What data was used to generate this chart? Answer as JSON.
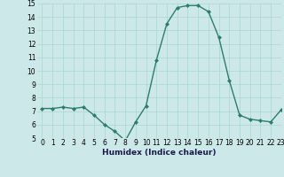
{
  "x": [
    0,
    1,
    2,
    3,
    4,
    5,
    6,
    7,
    8,
    9,
    10,
    11,
    12,
    13,
    14,
    15,
    16,
    17,
    18,
    19,
    20,
    21,
    22,
    23
  ],
  "y": [
    7.2,
    7.2,
    7.3,
    7.2,
    7.3,
    6.7,
    6.0,
    5.5,
    4.8,
    6.2,
    7.4,
    10.8,
    13.5,
    14.7,
    14.85,
    14.85,
    14.4,
    12.5,
    9.3,
    6.7,
    6.4,
    6.3,
    6.2,
    7.1
  ],
  "xlabel": "Humidex (Indice chaleur)",
  "ylim": [
    5,
    15
  ],
  "xlim": [
    -0.5,
    23
  ],
  "yticks": [
    5,
    6,
    7,
    8,
    9,
    10,
    11,
    12,
    13,
    14,
    15
  ],
  "xticks": [
    0,
    1,
    2,
    3,
    4,
    5,
    6,
    7,
    8,
    9,
    10,
    11,
    12,
    13,
    14,
    15,
    16,
    17,
    18,
    19,
    20,
    21,
    22,
    23
  ],
  "line_color": "#2d7d6e",
  "marker_color": "#2d7d6e",
  "bg_color": "#cce8e8",
  "grid_color": "#aad4d4",
  "xlabel_fontsize": 6.5,
  "tick_fontsize": 5.5
}
